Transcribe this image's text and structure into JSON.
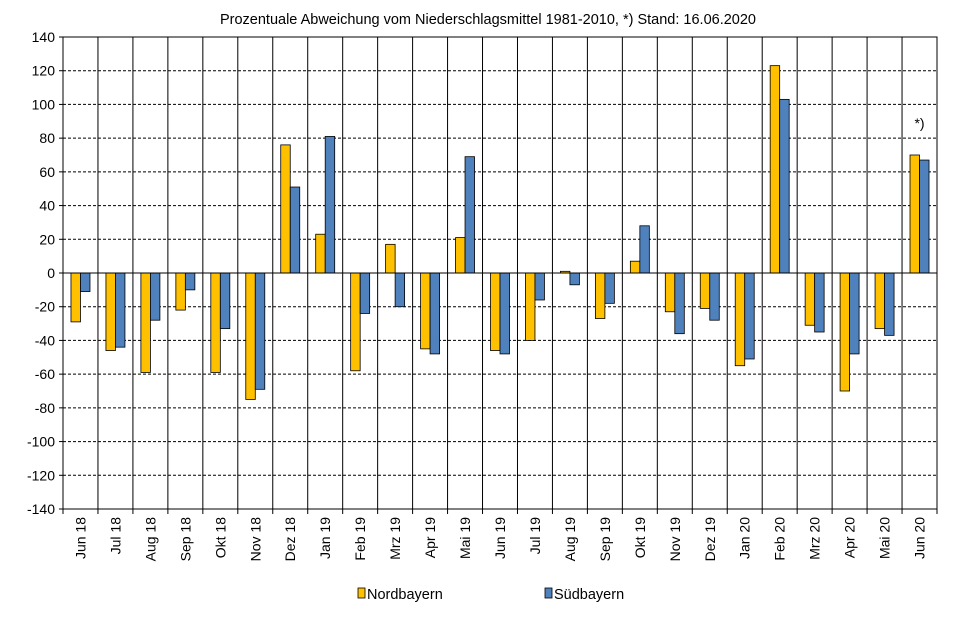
{
  "chart_data": {
    "type": "bar",
    "title": "Prozentuale  Abweichung vom Niederschlagsmittel 1981-2010,  *) Stand: 16.06.2020",
    "xlabel": "",
    "ylabel": "",
    "ylim": [
      -140,
      140
    ],
    "yticks": [
      140,
      120,
      100,
      80,
      60,
      40,
      20,
      0,
      -20,
      -40,
      -60,
      -80,
      -100,
      -120,
      -140
    ],
    "grid": true,
    "legend_position": "bottom",
    "categories": [
      "Jun 18",
      "Jul 18",
      "Aug 18",
      "Sep 18",
      "Okt 18",
      "Nov 18",
      "Dez 18",
      "Jan 19",
      "Feb 19",
      "Mrz 19",
      "Apr 19",
      "Mai 19",
      "Jun 19",
      "Jul 19",
      "Aug 19",
      "Sep 19",
      "Okt 19",
      "Nov 19",
      "Dez 19",
      "Jan 20",
      "Feb 20",
      "Mrz 20",
      "Apr 20",
      "Mai 20",
      "Jun 20"
    ],
    "series": [
      {
        "name": "Nordbayern",
        "color": "#FFC000",
        "values": [
          -29,
          -46,
          -59,
          -22,
          -59,
          -75,
          76,
          23,
          -58,
          17,
          -45,
          21,
          -46,
          -40,
          1,
          -27,
          7,
          -23,
          -21,
          -55,
          123,
          -31,
          -70,
          -33,
          70
        ]
      },
      {
        "name": "Südbayern",
        "color": "#4F81BD",
        "values": [
          -11,
          -44,
          -28,
          -10,
          -33,
          -69,
          51,
          81,
          -24,
          -20,
          -48,
          69,
          -48,
          -16,
          -7,
          -18,
          28,
          -36,
          -28,
          -51,
          103,
          -35,
          -48,
          -37,
          67
        ]
      }
    ],
    "annotations": [
      {
        "text": "*)",
        "category": "Jun 20"
      }
    ]
  }
}
